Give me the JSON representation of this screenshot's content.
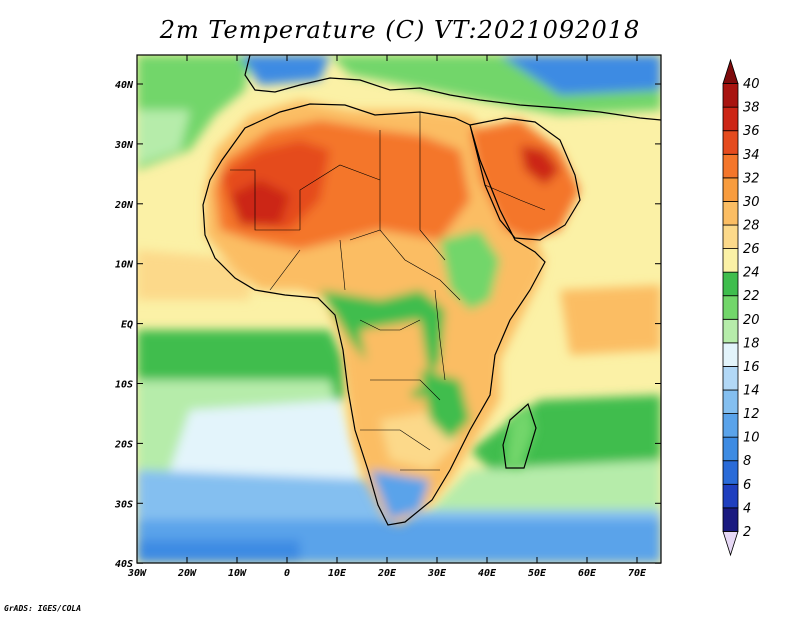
{
  "title": "2m Temperature (C) VT:2021092018",
  "credit": "GrADS: IGES/COLA",
  "map": {
    "lon_labels": [
      "30W",
      "20W",
      "10W",
      "0",
      "10E",
      "20E",
      "30E",
      "40E",
      "50E",
      "60E",
      "70E"
    ],
    "lat_labels": [
      "40N",
      "30N",
      "20N",
      "10N",
      "EQ",
      "10S",
      "20S",
      "30S",
      "40S"
    ]
  },
  "colorbar": {
    "levels": [
      "2",
      "4",
      "6",
      "8",
      "10",
      "12",
      "14",
      "16",
      "18",
      "20",
      "22",
      "24",
      "26",
      "28",
      "30",
      "32",
      "34",
      "36",
      "38",
      "40"
    ],
    "colors": [
      "#e6d8f5",
      "#1a1a80",
      "#1f3fbf",
      "#2a6bd8",
      "#3d8be3",
      "#5aa3ea",
      "#84bff0",
      "#b2d8f6",
      "#e3f4fb",
      "#b6ecaa",
      "#72d66a",
      "#3fbd4d",
      "#fbf1a6",
      "#fcd98a",
      "#fbbd63",
      "#f89c3e",
      "#f4762b",
      "#e54b1e",
      "#cc2616",
      "#a81410",
      "#7e0b0c"
    ]
  }
}
